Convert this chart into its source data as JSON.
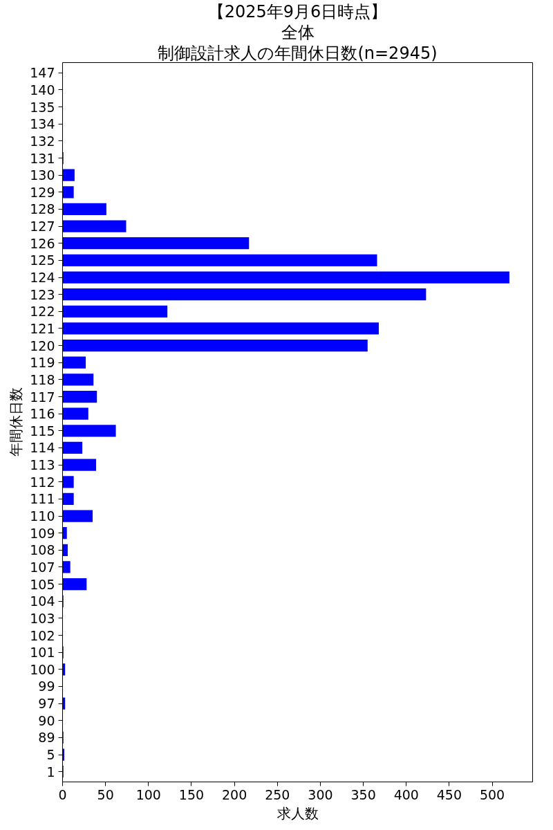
{
  "chart_data": {
    "type": "bar",
    "orientation": "horizontal",
    "title": "【2025年9月6日時点】",
    "subtitle": "全体",
    "annotations": [
      "制御設計求人の年間休日数(n=2945)"
    ],
    "xlabel": "求人数",
    "ylabel": "年間休日数",
    "categories": [
      "147",
      "140",
      "135",
      "134",
      "132",
      "131",
      "130",
      "129",
      "128",
      "127",
      "126",
      "125",
      "124",
      "123",
      "122",
      "121",
      "120",
      "119",
      "118",
      "117",
      "116",
      "115",
      "114",
      "113",
      "112",
      "111",
      "110",
      "109",
      "108",
      "107",
      "105",
      "104",
      "103",
      "102",
      "101",
      "100",
      "99",
      "97",
      "90",
      "89",
      "5",
      "1"
    ],
    "values": [
      0,
      0,
      0,
      0,
      0,
      1,
      14,
      13,
      51,
      74,
      217,
      366,
      520,
      423,
      122,
      368,
      355,
      27,
      36,
      40,
      30,
      62,
      23,
      39,
      13,
      13,
      35,
      5,
      6,
      9,
      28,
      1,
      0,
      0,
      1,
      3,
      0,
      3,
      0,
      1,
      2,
      1
    ],
    "color": "#0000ff",
    "xlim": [
      0,
      547
    ],
    "xticks": [
      0,
      50,
      100,
      150,
      200,
      250,
      300,
      350,
      400,
      450,
      500
    ],
    "grid": false
  }
}
